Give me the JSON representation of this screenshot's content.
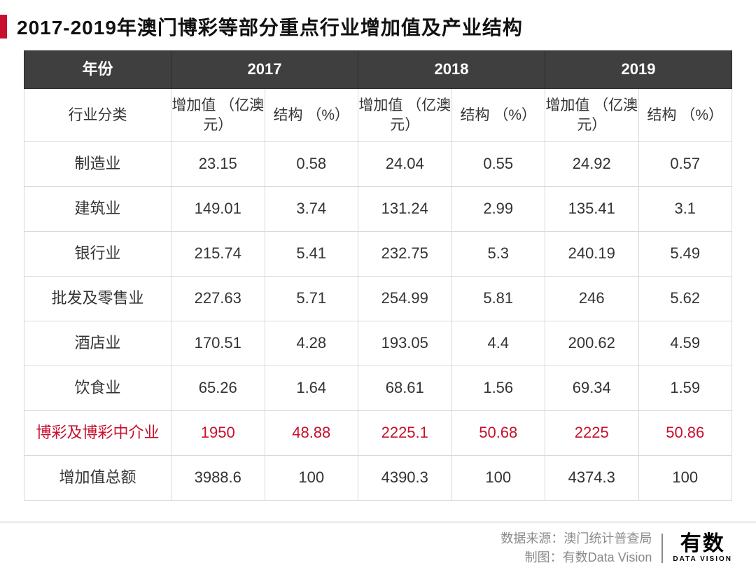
{
  "title": "2017-2019年澳门博彩等部分重点行业增加值及产业结构",
  "table": {
    "corner_label": "年份",
    "years": [
      "2017",
      "2018",
      "2019"
    ],
    "category_label": "行业分类",
    "sub_headers": {
      "value": "增加值\n（亿澳元）",
      "pct": "结构\n（%）"
    },
    "rows": [
      {
        "cat": "制造业",
        "v17": "23.15",
        "p17": "0.58",
        "v18": "24.04",
        "p18": "0.55",
        "v19": "24.92",
        "p19": "0.57",
        "highlight": false
      },
      {
        "cat": "建筑业",
        "v17": "149.01",
        "p17": "3.74",
        "v18": "131.24",
        "p18": "2.99",
        "v19": "135.41",
        "p19": "3.1",
        "highlight": false
      },
      {
        "cat": "银行业",
        "v17": "215.74",
        "p17": "5.41",
        "v18": "232.75",
        "p18": "5.3",
        "v19": "240.19",
        "p19": "5.49",
        "highlight": false
      },
      {
        "cat": "批发及零售业",
        "v17": "227.63",
        "p17": "5.71",
        "v18": "254.99",
        "p18": "5.81",
        "v19": "246",
        "p19": "5.62",
        "highlight": false
      },
      {
        "cat": "酒店业",
        "v17": "170.51",
        "p17": "4.28",
        "v18": "193.05",
        "p18": "4.4",
        "v19": "200.62",
        "p19": "4.59",
        "highlight": false
      },
      {
        "cat": "饮食业",
        "v17": "65.26",
        "p17": "1.64",
        "v18": "68.61",
        "p18": "1.56",
        "v19": "69.34",
        "p19": "1.59",
        "highlight": false
      },
      {
        "cat": "博彩及博彩中介业",
        "v17": "1950",
        "p17": "48.88",
        "v18": "2225.1",
        "p18": "50.68",
        "v19": "2225",
        "p19": "50.86",
        "highlight": true
      },
      {
        "cat": "增加值总额",
        "v17": "3988.6",
        "p17": "100",
        "v18": "4390.3",
        "p18": "100",
        "v19": "4374.3",
        "p19": "100",
        "highlight": false
      }
    ]
  },
  "footer": {
    "source_label": "数据来源：",
    "source": "澳门统计普查局",
    "chart_label": "制图：",
    "chart_by": "有数Data Vision",
    "logo_main": "有数",
    "logo_sub": "DATA VISION"
  },
  "colors": {
    "accent": "#c8102e",
    "header_bg": "#3f3f3f",
    "border": "#d9d9d9",
    "text": "#333333",
    "muted": "#8a8a8a"
  }
}
